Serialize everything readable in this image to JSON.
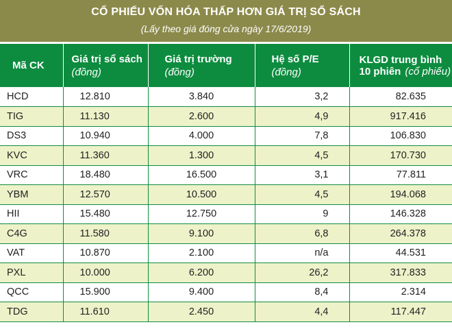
{
  "title": "CỔ PHIẾU VỐN HÓA THẤP HƠN GIÁ TRỊ SỔ SÁCH",
  "subtitle": "(Lấy theo giá đóng cửa ngày 17/6/2019)",
  "colors": {
    "title_band": "#8c8a4b",
    "header": "#0d8c3f",
    "stripe": "#eef2c9",
    "grid": "#0d8c3f"
  },
  "headers": {
    "ck": "Mã CK",
    "book_value": "Giá trị sổ sách",
    "book_value_unit": "(đồng)",
    "market_value": "Giá trị trường",
    "market_value_unit": "(đồng)",
    "pe": "Hệ số P/E",
    "pe_unit": "(đồng)",
    "volume_line1": "KLGD trung bình",
    "volume_line2": "10 phiên",
    "volume_unit": "(cổ phiếu)"
  },
  "rows": [
    {
      "ck": "HCD",
      "book_value": "12.810",
      "market_value": "3.840",
      "pe": "3,2",
      "volume": "82.635"
    },
    {
      "ck": "TIG",
      "book_value": "11.130",
      "market_value": "2.600",
      "pe": "4,9",
      "volume": "917.416"
    },
    {
      "ck": "DS3",
      "book_value": "10.940",
      "market_value": "4.000",
      "pe": "7,8",
      "volume": "106.830"
    },
    {
      "ck": "KVC",
      "book_value": "11.360",
      "market_value": "1.300",
      "pe": "4,5",
      "volume": "170.730"
    },
    {
      "ck": "VRC",
      "book_value": "18.480",
      "market_value": "16.500",
      "pe": "3,1",
      "volume": "77.811"
    },
    {
      "ck": "YBM",
      "book_value": "12.570",
      "market_value": "10.500",
      "pe": "4,5",
      "volume": "194.068"
    },
    {
      "ck": "HII",
      "book_value": "15.480",
      "market_value": "12.750",
      "pe": "9",
      "volume": "146.328"
    },
    {
      "ck": "C4G",
      "book_value": "11.580",
      "market_value": "9.100",
      "pe": "6,8",
      "volume": "264.378"
    },
    {
      "ck": "VAT",
      "book_value": "10.870",
      "market_value": "2.100",
      "pe": "n/a",
      "volume": "44.531"
    },
    {
      "ck": "PXL",
      "book_value": "10.000",
      "market_value": "6.200",
      "pe": "26,2",
      "volume": "317.833"
    },
    {
      "ck": "QCC",
      "book_value": "15.900",
      "market_value": "9.400",
      "pe": "8,4",
      "volume": "2.314"
    },
    {
      "ck": "TDG",
      "book_value": "11.610",
      "market_value": "2.450",
      "pe": "4,4",
      "volume": "117.447"
    }
  ]
}
